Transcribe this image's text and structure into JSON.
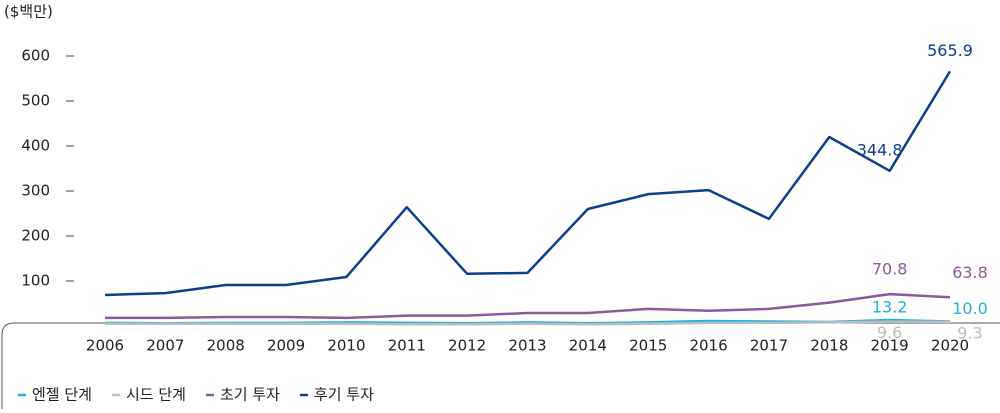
{
  "chart_data": {
    "type": "line",
    "y_unit": "($백만)",
    "x": [
      2006,
      2007,
      2008,
      2009,
      2010,
      2011,
      2012,
      2013,
      2014,
      2015,
      2016,
      2017,
      2018,
      2019,
      2020
    ],
    "ylim": [
      0,
      600
    ],
    "yticks": [
      100,
      200,
      300,
      400,
      500,
      600
    ],
    "series": [
      {
        "name": "엔젤 단계",
        "color": "#1db4d8",
        "values": [
          7,
          6,
          7,
          7,
          8,
          7,
          6,
          8,
          6,
          8,
          11,
          10,
          9,
          13.2,
          10.0
        ],
        "value_labels": [
          null,
          null,
          null,
          null,
          null,
          null,
          null,
          null,
          null,
          null,
          null,
          null,
          null,
          "13.2",
          "10.0"
        ]
      },
      {
        "name": "시드 단계",
        "color": "#bdbdbd",
        "values": [
          5,
          5,
          5,
          5,
          5,
          4,
          4,
          5,
          4,
          5,
          7,
          7,
          8,
          9.6,
          9.3
        ],
        "value_labels": [
          null,
          null,
          null,
          null,
          null,
          null,
          null,
          null,
          null,
          null,
          null,
          null,
          null,
          "9.6",
          "9.3"
        ]
      },
      {
        "name": "초기 투자",
        "color": "#8a5a9b",
        "values": [
          18,
          18,
          20,
          20,
          18,
          23,
          23,
          29,
          29,
          38,
          34,
          38,
          52,
          70.8,
          63.8
        ],
        "value_labels": [
          null,
          null,
          null,
          null,
          null,
          null,
          null,
          null,
          null,
          null,
          null,
          null,
          null,
          "70.8",
          "63.8"
        ]
      },
      {
        "name": "후기 투자",
        "color": "#0e3f8c",
        "values": [
          69,
          73,
          91,
          91,
          109,
          264,
          116,
          118,
          260,
          293,
          302,
          238,
          420,
          344.8,
          565.9
        ],
        "value_labels": [
          null,
          null,
          null,
          null,
          null,
          null,
          null,
          null,
          null,
          null,
          null,
          null,
          null,
          "344.8",
          "565.9"
        ]
      }
    ]
  }
}
